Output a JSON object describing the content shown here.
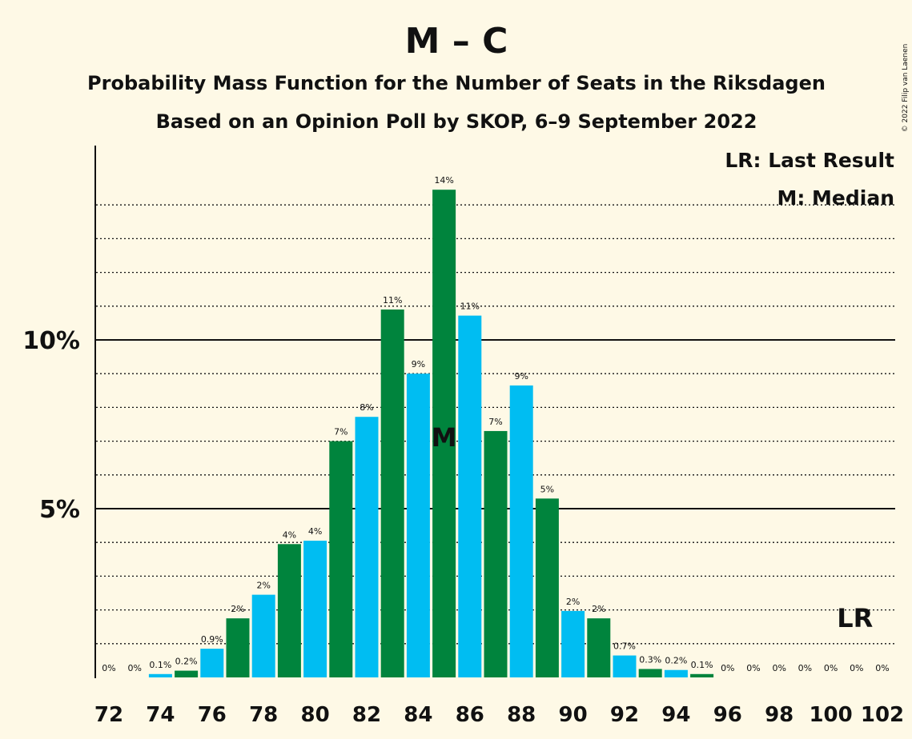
{
  "chart_data": {
    "type": "bar",
    "title": "M – C",
    "subtitle_1": "Probability Mass Function for the Number of Seats in the Riksdagen",
    "subtitle_2": "Based on an Opinion Poll by SKOP, 6–9 September 2022",
    "copyright": "© 2022 Filip van Laenen",
    "legend": {
      "lr": "LR: Last Result",
      "median": "M: Median",
      "placement": "top-right"
    },
    "median_marker": "M",
    "median_seat": 85,
    "last_result_marker": "LR",
    "last_result_seat": 101,
    "ylim": [
      0,
      15.5
    ],
    "y_ticks": [
      {
        "value": 5,
        "label": "5%"
      },
      {
        "value": 10,
        "label": "10%"
      }
    ],
    "minor_gridlines": [
      1,
      2,
      3,
      4,
      6,
      7,
      8,
      9,
      11,
      12,
      13,
      14
    ],
    "x_tick_labels": [
      "72",
      "74",
      "76",
      "78",
      "80",
      "82",
      "84",
      "86",
      "88",
      "90",
      "92",
      "94",
      "96",
      "98",
      "100",
      "102"
    ],
    "colors": {
      "green": "#00843D",
      "blue": "#00BDF2",
      "background": "#FEF9E6"
    },
    "bars": [
      {
        "seat": 72,
        "value": 0,
        "label": "0%"
      },
      {
        "seat": 73,
        "value": 0,
        "label": "0%"
      },
      {
        "seat": 74,
        "value": 0.1,
        "label": "0.1%"
      },
      {
        "seat": 75,
        "value": 0.2,
        "label": "0.2%"
      },
      {
        "seat": 76,
        "value": 0.85,
        "label": "0.9%"
      },
      {
        "seat": 77,
        "value": 1.75,
        "label": "2%"
      },
      {
        "seat": 78,
        "value": 2.45,
        "label": "2%"
      },
      {
        "seat": 79,
        "value": 3.95,
        "label": "4%"
      },
      {
        "seat": 80,
        "value": 4.05,
        "label": "4%"
      },
      {
        "seat": 81,
        "value": 7.0,
        "label": "7%"
      },
      {
        "seat": 82,
        "value": 7.72,
        "label": "8%"
      },
      {
        "seat": 83,
        "value": 10.9,
        "label": "11%"
      },
      {
        "seat": 84,
        "value": 9.0,
        "label": "9%"
      },
      {
        "seat": 85,
        "value": 14.45,
        "label": "14%"
      },
      {
        "seat": 86,
        "value": 10.72,
        "label": "11%"
      },
      {
        "seat": 87,
        "value": 7.3,
        "label": "7%"
      },
      {
        "seat": 88,
        "value": 8.65,
        "label": "9%"
      },
      {
        "seat": 89,
        "value": 5.3,
        "label": "5%"
      },
      {
        "seat": 90,
        "value": 1.97,
        "label": "2%"
      },
      {
        "seat": 91,
        "value": 1.75,
        "label": "2%"
      },
      {
        "seat": 92,
        "value": 0.65,
        "label": "0.7%"
      },
      {
        "seat": 93,
        "value": 0.25,
        "label": "0.3%"
      },
      {
        "seat": 94,
        "value": 0.22,
        "label": "0.2%"
      },
      {
        "seat": 95,
        "value": 0.1,
        "label": "0.1%"
      },
      {
        "seat": 96,
        "value": 0,
        "label": "0%"
      },
      {
        "seat": 97,
        "value": 0,
        "label": "0%"
      },
      {
        "seat": 98,
        "value": 0,
        "label": "0%"
      },
      {
        "seat": 99,
        "value": 0,
        "label": "0%"
      },
      {
        "seat": 100,
        "value": 0,
        "label": "0%"
      },
      {
        "seat": 101,
        "value": 0,
        "label": "0%"
      },
      {
        "seat": 102,
        "value": 0,
        "label": "0%"
      }
    ]
  }
}
